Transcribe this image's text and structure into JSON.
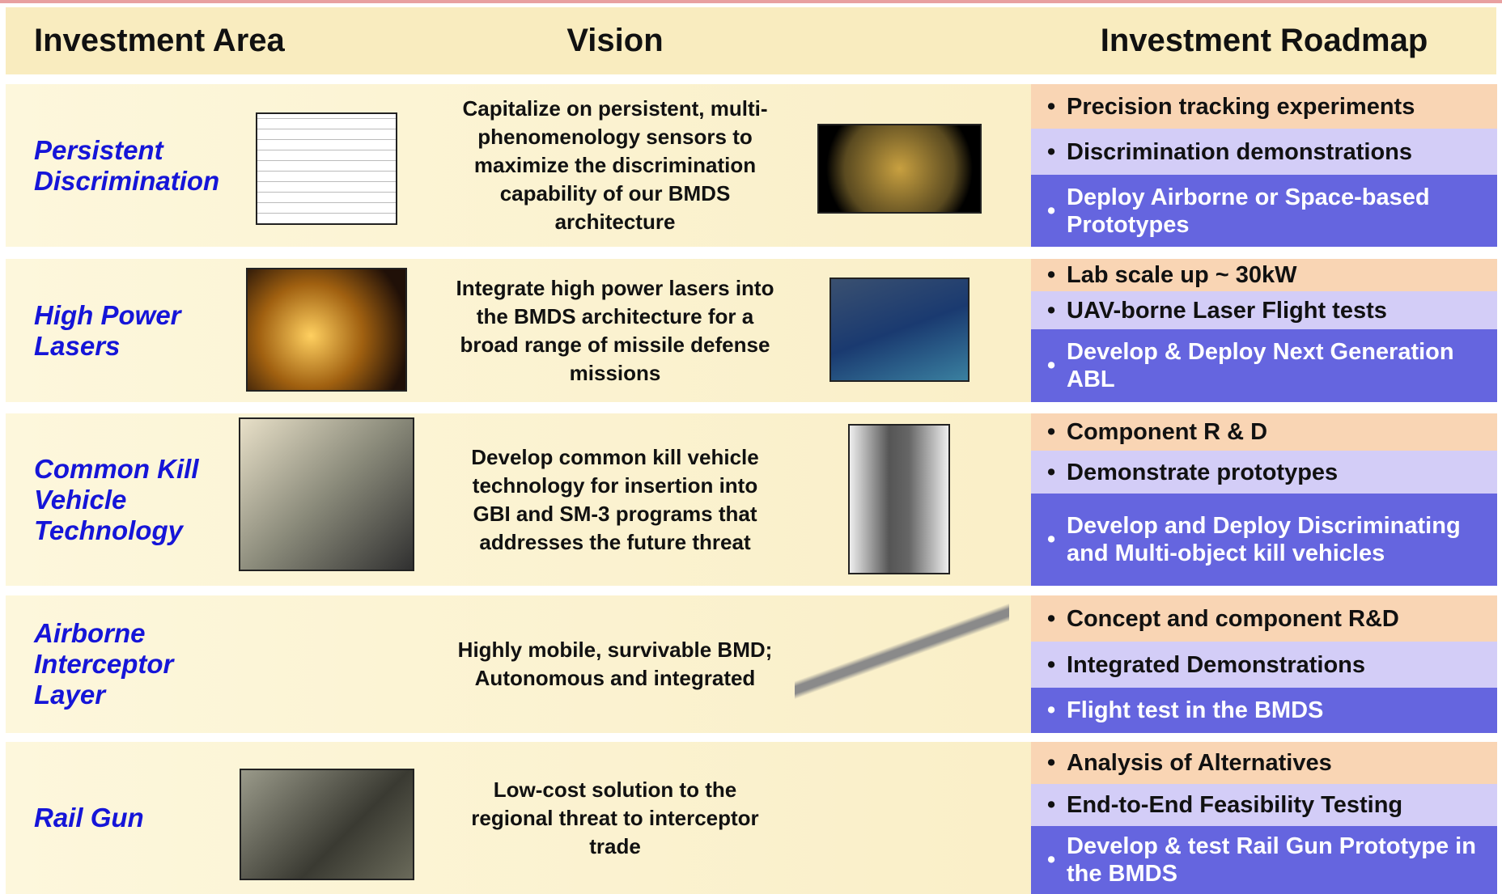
{
  "header": {
    "columns": [
      "Investment Area",
      "Vision",
      "Investment Roadmap"
    ]
  },
  "rows": [
    {
      "area": "Persistent Discrimination",
      "vision": "Capitalize on persistent, multi-phenomenology sensors to maximize the discrimination capability of our BMDS architecture",
      "roadmap": [
        "Precision tracking experiments",
        "Discrimination demonstrations",
        "Deploy Airborne or Space-based Prototypes"
      ]
    },
    {
      "area": "High Power Lasers",
      "vision": "Integrate high power lasers into the BMDS architecture for a broad range of missile defense missions",
      "roadmap": [
        "Lab scale up ~ 30kW",
        "UAV-borne Laser Flight tests",
        "Develop & Deploy Next Generation ABL"
      ]
    },
    {
      "area": "Common Kill Vehicle Technology",
      "vision": "Develop common kill vehicle technology for insertion into GBI and SM-3 programs that addresses the future threat",
      "roadmap": [
        "Component R & D",
        "Demonstrate prototypes",
        "Develop and Deploy Discriminating and Multi-object kill vehicles"
      ]
    },
    {
      "area": "Airborne Interceptor Layer",
      "vision": "Highly mobile, survivable BMD;  Autonomous and integrated",
      "roadmap": [
        "Concept and component R&D",
        "Integrated Demonstrations",
        "Flight test in the BMDS"
      ]
    },
    {
      "area": "Rail Gun",
      "vision": "Low-cost solution to the regional threat to interceptor trade",
      "roadmap": [
        "Analysis of Alternatives",
        "End-to-End Feasibility Testing",
        "Develop & test Rail Gun Prototype in the BMDS"
      ]
    }
  ]
}
